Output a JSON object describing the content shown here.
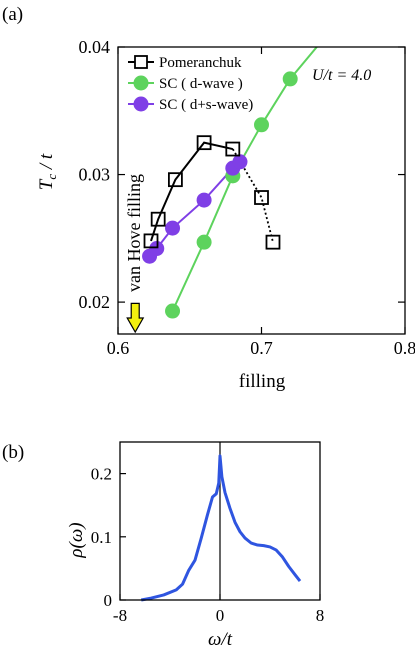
{
  "chart_data": [
    {
      "panel_label": "(a)",
      "type": "scatter",
      "xlabel": "filling",
      "ylabel_main": "T",
      "ylabel_sub": "c",
      "ylabel_tail": " / t",
      "xlim": [
        0.6,
        0.8
      ],
      "ylim": [
        0.0175,
        0.04
      ],
      "xticks": [
        0.6,
        0.7,
        0.8
      ],
      "xtick_labels": [
        "0.6",
        "0.7",
        "0.8"
      ],
      "yticks": [
        0.02,
        0.03,
        0.04
      ],
      "ytick_labels": [
        "0.02",
        "0.03",
        "0.04"
      ],
      "annotation": "U/t = 4.0",
      "vertical_annotation": "van Hove filling",
      "van_hove_filling": 0.612,
      "legend_position": "top-left",
      "series": [
        {
          "name": "Pomeranchuk",
          "marker": "open-square",
          "color": "#000000",
          "x": [
            0.623,
            0.628,
            0.64,
            0.66,
            0.68,
            0.7,
            0.708
          ],
          "y": [
            0.0248,
            0.0265,
            0.0296,
            0.0325,
            0.032,
            0.0282,
            0.0247
          ],
          "line_solid_upto_index": 4,
          "dotted_from_index": 4
        },
        {
          "name": "SC ( d-wave )",
          "marker": "filled-circle",
          "color": "#5dd35d",
          "x": [
            0.638,
            0.66,
            0.68,
            0.7,
            0.72
          ],
          "y": [
            0.0193,
            0.0247,
            0.0299,
            0.0339,
            0.0375
          ],
          "extend_to": [
            0.74,
            0.0402
          ]
        },
        {
          "name": "SC ( d+s-wave)",
          "marker": "filled-circle",
          "color": "#7f3fe6",
          "x": [
            0.622,
            0.627,
            0.638,
            0.66,
            0.68,
            0.685
          ],
          "y": [
            0.0236,
            0.0242,
            0.0258,
            0.028,
            0.0305,
            0.031
          ]
        }
      ]
    },
    {
      "panel_label": "(b)",
      "type": "line",
      "xlabel": "ω/t",
      "ylabel": "ρ(ω)",
      "xlim": [
        -8,
        8
      ],
      "ylim": [
        0,
        0.25
      ],
      "xticks": [
        -8,
        0,
        8
      ],
      "xtick_labels": [
        "-8",
        "0",
        "8"
      ],
      "yticks": [
        0,
        0.1,
        0.2
      ],
      "ytick_labels": [
        "0",
        "0.1",
        "0.2"
      ],
      "vertical_line_at": 0,
      "series": [
        {
          "color": "#2f55e0",
          "x": [
            -6.3,
            -5.5,
            -4.5,
            -3.5,
            -3.0,
            -2.5,
            -2.0,
            -1.5,
            -1.0,
            -0.6,
            -0.3,
            -0.1,
            0.0,
            0.15,
            0.4,
            0.8,
            1.2,
            1.6,
            2.0,
            2.5,
            3.0,
            3.5,
            4.0,
            4.5,
            5.0,
            5.5,
            6.0,
            6.4
          ],
          "y": [
            0.0,
            0.003,
            0.008,
            0.016,
            0.025,
            0.047,
            0.063,
            0.098,
            0.135,
            0.163,
            0.168,
            0.185,
            0.228,
            0.195,
            0.17,
            0.145,
            0.123,
            0.108,
            0.098,
            0.09,
            0.087,
            0.086,
            0.084,
            0.079,
            0.068,
            0.053,
            0.04,
            0.03
          ]
        }
      ]
    }
  ]
}
